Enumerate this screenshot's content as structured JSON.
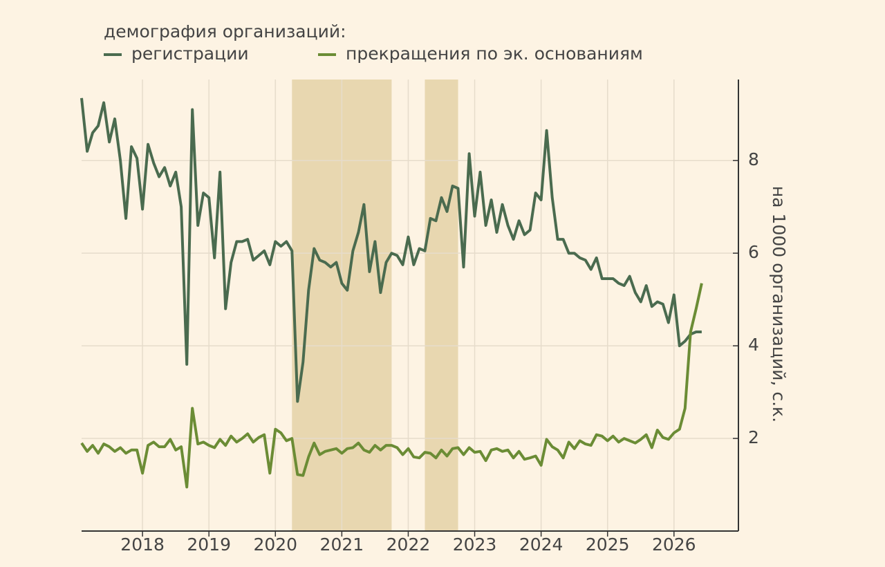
{
  "chart_data": {
    "type": "line",
    "title": "демография организаций:",
    "y_label": "на 1000 организаций, с.к.",
    "x": [
      2017.083,
      2017.167,
      2017.25,
      2017.333,
      2017.417,
      2017.5,
      2017.583,
      2017.667,
      2017.75,
      2017.833,
      2017.917,
      2018.0,
      2018.083,
      2018.167,
      2018.25,
      2018.333,
      2018.417,
      2018.5,
      2018.583,
      2018.667,
      2018.75,
      2018.833,
      2018.917,
      2019.0,
      2019.083,
      2019.167,
      2019.25,
      2019.333,
      2019.417,
      2019.5,
      2019.583,
      2019.667,
      2019.75,
      2019.833,
      2019.917,
      2020.0,
      2020.083,
      2020.167,
      2020.25,
      2020.333,
      2020.417,
      2020.5,
      2020.583,
      2020.667,
      2020.75,
      2020.833,
      2020.917,
      2021.0,
      2021.083,
      2021.167,
      2021.25,
      2021.333,
      2021.417,
      2021.5,
      2021.583,
      2021.667,
      2021.75,
      2021.833,
      2021.917,
      2022.0,
      2022.083,
      2022.167,
      2022.25,
      2022.333,
      2022.417,
      2022.5,
      2022.583,
      2022.667,
      2022.75,
      2022.833,
      2022.917,
      2023.0,
      2023.083,
      2023.167,
      2023.25,
      2023.333,
      2023.417,
      2023.5,
      2023.583,
      2023.667,
      2023.75,
      2023.833,
      2023.917,
      2024.0,
      2024.083,
      2024.167,
      2024.25,
      2024.333,
      2024.417,
      2024.5,
      2024.583,
      2024.667,
      2024.75,
      2024.833,
      2024.917,
      2025.0,
      2025.083,
      2025.167,
      2025.25,
      2025.333,
      2025.417,
      2025.5,
      2025.583,
      2025.667,
      2025.75,
      2025.833,
      2025.917,
      2026.0,
      2026.083,
      2026.167,
      2026.25,
      2026.333,
      2026.417
    ],
    "series": [
      {
        "name": "регистрации",
        "color": "#4a6b4f",
        "values": [
          9.35,
          8.2,
          8.6,
          8.75,
          9.25,
          8.4,
          8.9,
          8.0,
          6.75,
          8.3,
          8.05,
          6.95,
          8.35,
          7.95,
          7.65,
          7.85,
          7.45,
          7.75,
          7.0,
          3.6,
          9.1,
          6.6,
          7.3,
          7.2,
          5.9,
          7.75,
          4.8,
          5.8,
          6.25,
          6.25,
          6.3,
          5.85,
          5.95,
          6.05,
          5.75,
          6.25,
          6.15,
          6.25,
          6.05,
          2.8,
          3.65,
          5.2,
          6.1,
          5.85,
          5.8,
          5.7,
          5.8,
          5.35,
          5.2,
          6.05,
          6.45,
          7.05,
          5.6,
          6.25,
          5.15,
          5.8,
          6.0,
          5.95,
          5.75,
          6.35,
          5.75,
          6.1,
          6.05,
          6.75,
          6.7,
          7.2,
          6.9,
          7.45,
          7.4,
          5.7,
          8.15,
          6.8,
          7.75,
          6.6,
          7.15,
          6.45,
          7.05,
          6.6,
          6.3,
          6.7,
          6.4,
          6.5,
          7.3,
          7.15,
          8.65,
          7.2,
          6.3,
          6.3,
          6.0,
          6.0,
          5.9,
          5.85,
          5.65,
          5.9,
          5.45,
          5.45,
          5.45,
          5.35,
          5.3,
          5.5,
          5.15,
          4.95,
          5.3,
          4.85,
          4.95,
          4.9,
          4.5,
          5.1,
          4.0,
          4.1,
          4.25,
          4.3,
          4.3
        ]
      },
      {
        "name": "прекращения по эк. основаниям",
        "color": "#6b8c35",
        "values": [
          1.9,
          1.72,
          1.85,
          1.68,
          1.88,
          1.82,
          1.72,
          1.8,
          1.68,
          1.75,
          1.75,
          1.25,
          1.85,
          1.92,
          1.82,
          1.82,
          1.98,
          1.75,
          1.82,
          0.95,
          2.65,
          1.88,
          1.92,
          1.85,
          1.8,
          1.98,
          1.85,
          2.05,
          1.92,
          2.0,
          2.1,
          1.92,
          2.02,
          2.08,
          1.25,
          2.2,
          2.12,
          1.95,
          2.0,
          1.22,
          1.2,
          1.6,
          1.9,
          1.65,
          1.72,
          1.75,
          1.78,
          1.68,
          1.78,
          1.8,
          1.9,
          1.75,
          1.7,
          1.85,
          1.75,
          1.85,
          1.85,
          1.8,
          1.65,
          1.78,
          1.6,
          1.58,
          1.7,
          1.68,
          1.58,
          1.75,
          1.62,
          1.78,
          1.8,
          1.65,
          1.8,
          1.7,
          1.72,
          1.52,
          1.75,
          1.78,
          1.72,
          1.75,
          1.58,
          1.72,
          1.55,
          1.58,
          1.62,
          1.42,
          1.98,
          1.82,
          1.75,
          1.58,
          1.92,
          1.78,
          1.95,
          1.88,
          1.85,
          2.08,
          2.05,
          1.95,
          2.05,
          1.92,
          2.0,
          1.95,
          1.9,
          1.98,
          2.08,
          1.8,
          2.18,
          2.02,
          1.98,
          2.12,
          2.2,
          2.65,
          4.3,
          4.8,
          5.35
        ]
      }
    ],
    "shaded_regions": [
      [
        2020.25,
        2021.75
      ],
      [
        2022.25,
        2022.75
      ]
    ],
    "shade_color": "#e8d7b0",
    "xlim": [
      2017.083,
      2026.97
    ],
    "xticks": [
      2018,
      2019,
      2020,
      2021,
      2022,
      2023,
      2024,
      2025,
      2026
    ],
    "ylim": [
      0,
      9.75
    ],
    "yticks": [
      2,
      4,
      6,
      8
    ],
    "grid": true
  }
}
